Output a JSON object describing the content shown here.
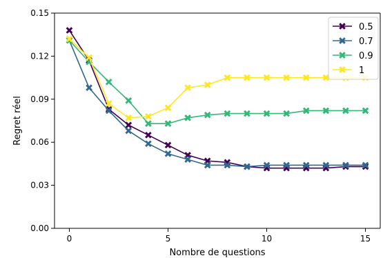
{
  "chart_data": {
    "type": "line",
    "title": "",
    "xlabel": "Nombre de questions",
    "ylabel": "Regret réel",
    "xlim": [
      -0.75,
      15.75
    ],
    "ylim": [
      0.0,
      0.15
    ],
    "xticks": [
      0,
      5,
      10,
      15
    ],
    "xtick_labels": [
      "0",
      "5",
      "10",
      "15"
    ],
    "yticks": [
      0.0,
      0.03,
      0.06,
      0.09,
      0.12,
      0.15
    ],
    "ytick_labels": [
      "0.00",
      "0.03",
      "0.06",
      "0.09",
      "0.12",
      "0.15"
    ],
    "grid": false,
    "legend_position": "top-right",
    "marker": "X",
    "x": [
      0,
      1,
      2,
      3,
      4,
      5,
      6,
      7,
      8,
      9,
      10,
      11,
      12,
      13,
      14,
      15
    ],
    "series": [
      {
        "name": "0.5",
        "color": "#440154",
        "values": [
          0.138,
          0.117,
          0.083,
          0.072,
          0.065,
          0.058,
          0.051,
          0.047,
          0.046,
          0.043,
          0.042,
          0.042,
          0.042,
          0.042,
          0.043,
          0.043
        ]
      },
      {
        "name": "0.7",
        "color": "#31688e",
        "values": [
          0.131,
          0.098,
          0.082,
          0.068,
          0.059,
          0.052,
          0.048,
          0.044,
          0.044,
          0.043,
          0.044,
          0.044,
          0.044,
          0.044,
          0.044,
          0.044
        ]
      },
      {
        "name": "0.9",
        "color": "#35b779",
        "values": [
          0.131,
          0.116,
          0.102,
          0.089,
          0.073,
          0.073,
          0.077,
          0.079,
          0.08,
          0.08,
          0.08,
          0.08,
          0.082,
          0.082,
          0.082,
          0.082
        ]
      },
      {
        "name": "1",
        "color": "#fde725",
        "values": [
          0.132,
          0.119,
          0.087,
          0.077,
          0.078,
          0.084,
          0.098,
          0.1,
          0.105,
          0.105,
          0.105,
          0.105,
          0.105,
          0.105,
          0.105,
          0.105
        ]
      }
    ]
  }
}
